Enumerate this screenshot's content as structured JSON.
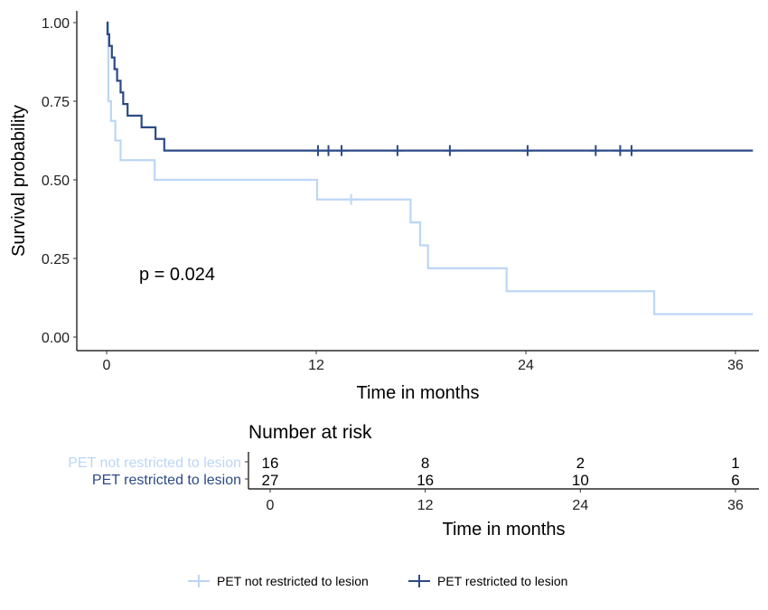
{
  "chart_data": {
    "type": "line",
    "subtype": "kaplan-meier step",
    "xlabel": "Time in months",
    "ylabel": "Survival probability",
    "xlim": [
      -1.7,
      37
    ],
    "ylim": [
      0,
      1
    ],
    "xticks": [
      "0",
      "12",
      "24",
      "36"
    ],
    "xtick_values": [
      0,
      12,
      24,
      36
    ],
    "yticks": [
      "0.00",
      "0.25",
      "0.50",
      "0.75",
      "1.00"
    ],
    "ytick_values": [
      0,
      0.25,
      0.5,
      0.75,
      1.0
    ],
    "grid": false,
    "annotation": "p = 0.024",
    "series": [
      {
        "name": "PET not restricted to lesion",
        "color": "#bcd6f5",
        "steps": [
          [
            0,
            1.0
          ],
          [
            0.1,
            0.75
          ],
          [
            0.25,
            0.6875
          ],
          [
            0.5,
            0.625
          ],
          [
            0.8,
            0.5625
          ],
          [
            2.75,
            0.5
          ],
          [
            12.05,
            0.4375
          ],
          [
            17.4,
            0.3646
          ],
          [
            17.95,
            0.2917
          ],
          [
            18.4,
            0.2188
          ],
          [
            22.9,
            0.1458
          ],
          [
            31.35,
            0.0729
          ]
        ],
        "end": 37,
        "censored": [
          [
            14.0,
            0.4375
          ]
        ]
      },
      {
        "name": "PET restricted to lesion",
        "color": "#2c4a86",
        "steps": [
          [
            0,
            1.0
          ],
          [
            0.05,
            0.963
          ],
          [
            0.15,
            0.926
          ],
          [
            0.3,
            0.889
          ],
          [
            0.45,
            0.852
          ],
          [
            0.6,
            0.815
          ],
          [
            0.8,
            0.778
          ],
          [
            0.95,
            0.741
          ],
          [
            1.2,
            0.704
          ],
          [
            2.0,
            0.667
          ],
          [
            2.8,
            0.63
          ],
          [
            3.3,
            0.593
          ]
        ],
        "end": 37,
        "censored": [
          [
            12.1,
            0.593
          ],
          [
            12.7,
            0.593
          ],
          [
            13.45,
            0.593
          ],
          [
            16.65,
            0.593
          ],
          [
            19.65,
            0.593
          ],
          [
            24.1,
            0.593
          ],
          [
            28.0,
            0.593
          ],
          [
            29.4,
            0.593
          ],
          [
            30.05,
            0.593
          ]
        ]
      }
    ],
    "legend_position": "bottom",
    "risk_table": {
      "title": "Number at risk",
      "xlabel": "Time in months",
      "times": [
        0,
        12,
        24,
        36
      ],
      "time_labels": [
        "0",
        "12",
        "24",
        "36"
      ],
      "rows": [
        {
          "label": "PET not restricted to lesion",
          "color": "#bcd6f5",
          "values": [
            "16",
            "8",
            "2",
            "1"
          ]
        },
        {
          "label": "PET restricted to lesion",
          "color": "#2c4a86",
          "values": [
            "27",
            "16",
            "10",
            "6"
          ]
        }
      ]
    }
  }
}
